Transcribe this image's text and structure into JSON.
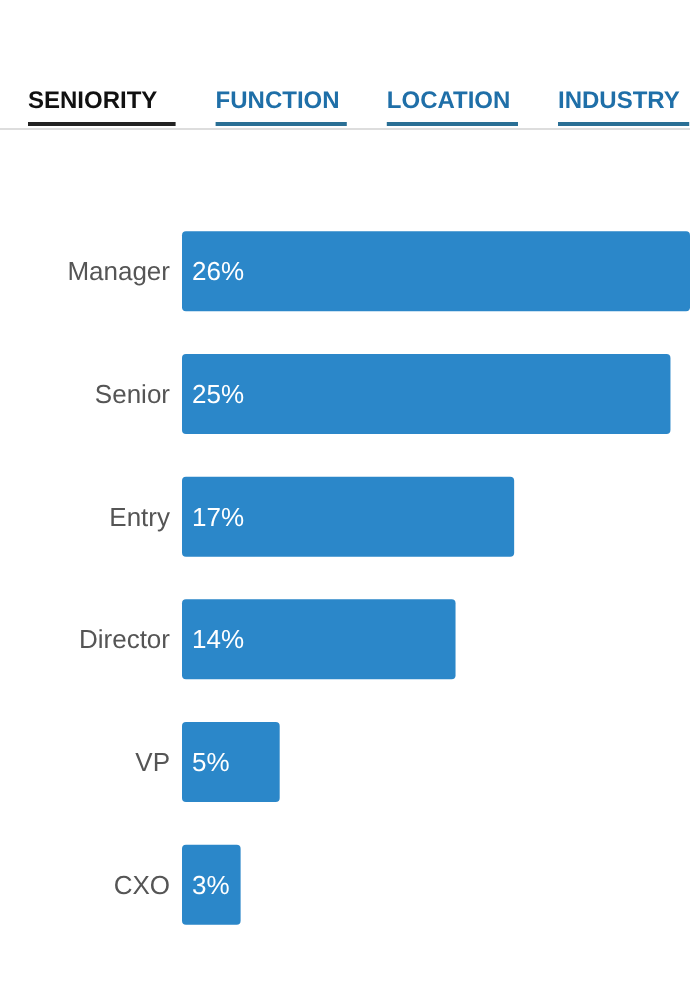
{
  "chart_data": {
    "type": "bar",
    "orientation": "horizontal",
    "annotations": [
      "SENIORITY",
      "FUNCTION",
      "LOCATION",
      "INDUSTRY"
    ],
    "categories": [
      "Manager",
      "Senior",
      "Entry",
      "Director",
      "VP",
      "CXO"
    ],
    "values": [
      26,
      25,
      17,
      14,
      5,
      3
    ],
    "value_labels": [
      "26%",
      "25%",
      "17%",
      "14%",
      "5%",
      "3%"
    ],
    "color": "#2b87c9"
  }
}
